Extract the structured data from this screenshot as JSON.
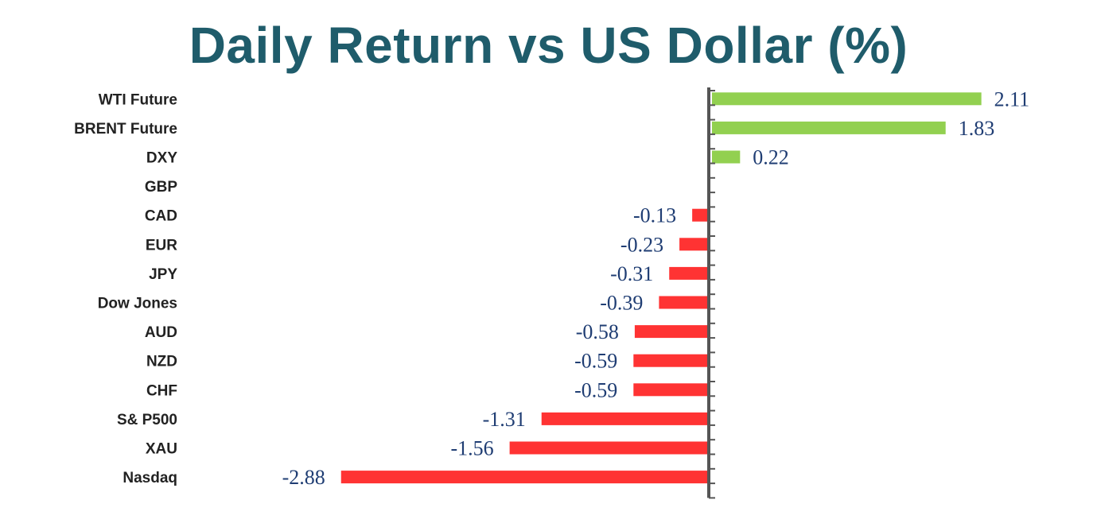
{
  "chart_data": {
    "type": "bar",
    "orientation": "horizontal",
    "title": "Daily Return vs US Dollar (%)",
    "xlabel": "",
    "ylabel": "",
    "categories": [
      "WTI Future",
      "BRENT Future",
      "DXY",
      "GBP",
      "CAD",
      "EUR",
      "JPY",
      "Dow Jones",
      "AUD",
      "NZD",
      "CHF",
      "S& P500",
      "XAU",
      "Nasdaq"
    ],
    "values": [
      2.11,
      1.83,
      0.22,
      0,
      -0.13,
      -0.23,
      -0.31,
      -0.39,
      -0.58,
      -0.59,
      -0.59,
      -1.31,
      -1.56,
      -2.88
    ],
    "value_labels": [
      "2.11",
      "1.83",
      "0.22",
      "",
      "-0.13",
      "-0.23",
      "-0.31",
      "-0.39",
      "-0.58",
      "-0.59",
      "-0.59",
      "-1.31",
      "-1.56",
      "-2.88"
    ],
    "xlim": [
      -2.88,
      2.11
    ],
    "grid": false,
    "legend": "none"
  },
  "colors": {
    "title": "#1f5c6b",
    "positive": "#92d050",
    "negative": "#ff3333",
    "value_label": "#1f3d73",
    "axis": "#555555"
  }
}
